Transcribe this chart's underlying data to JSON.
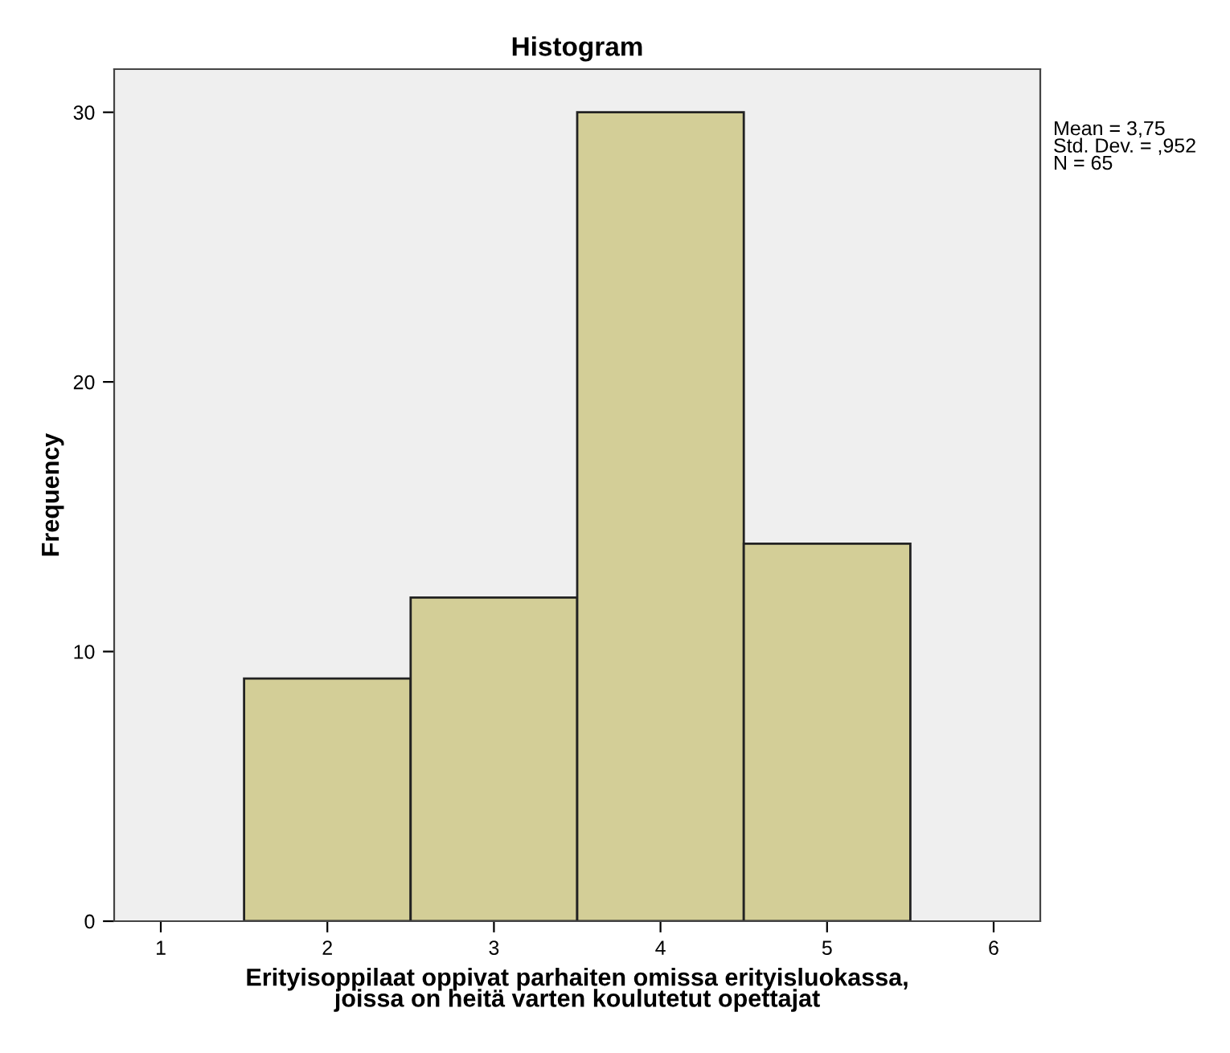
{
  "chart_data": {
    "type": "histogram",
    "title": "Histogram",
    "xlabel": "Erityisoppilaat oppivat parhaiten omissa erityisluokassa,\njoissa on heitä varten koulutetut opettajat",
    "ylabel": "Frequency",
    "bins": [
      1.5,
      2.5,
      3.5,
      4.5,
      5.5
    ],
    "values": [
      9,
      12,
      30,
      14
    ],
    "color": "#d3ce97",
    "xlim": [
      0.72,
      6.28
    ],
    "xticks": [
      1,
      2,
      3,
      4,
      5,
      6
    ],
    "ylim": [
      0,
      31.6
    ],
    "yticks": [
      0,
      10,
      20,
      30
    ],
    "grid": false,
    "annotations": [
      "Mean = 3,75\nStd. Dev. = ,952\nN = 65"
    ]
  }
}
